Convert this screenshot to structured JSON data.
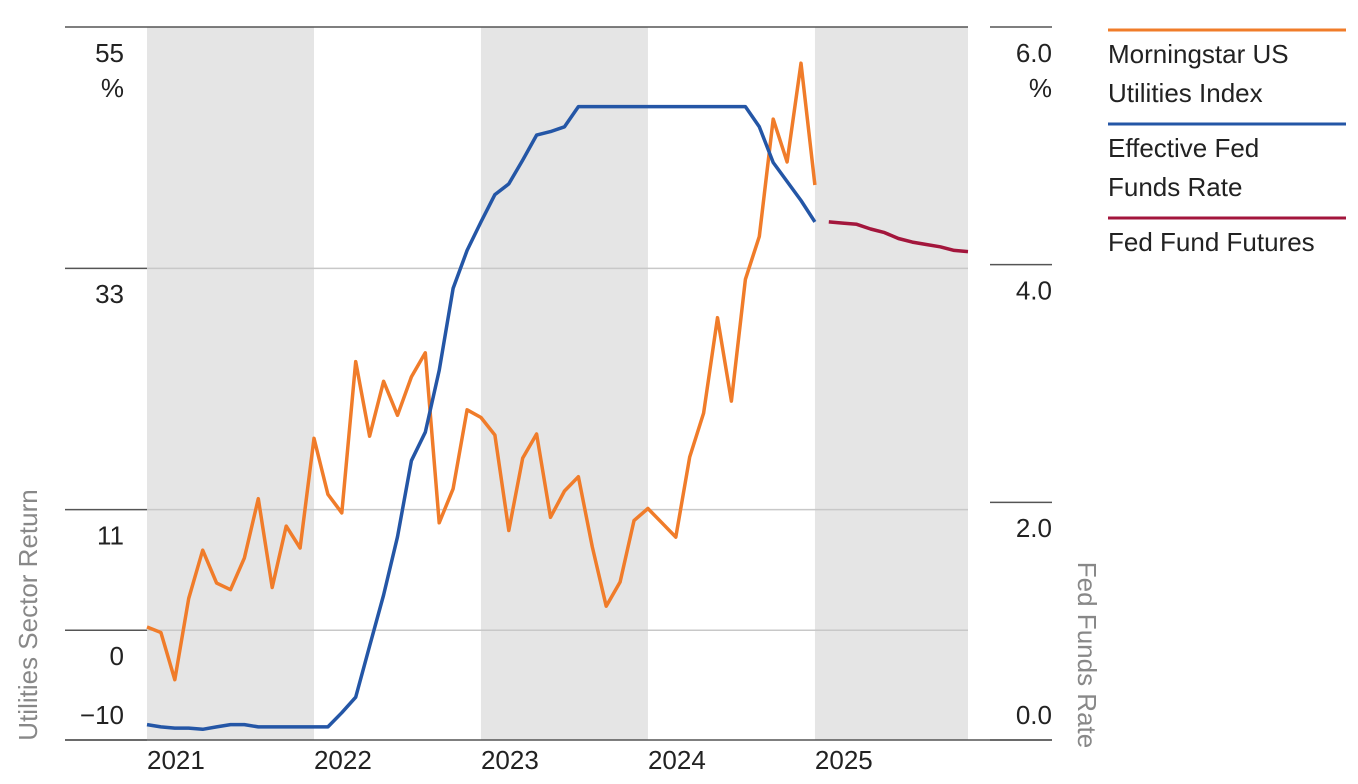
{
  "chart_data": {
    "type": "line",
    "y_label": "Utilities Sector Return",
    "y2_label": "Fed Funds Rate",
    "y_unit": "%",
    "y2_unit": "%",
    "categories": [
      "2021",
      null,
      null,
      null,
      null,
      null,
      null,
      null,
      null,
      null,
      null,
      null,
      "2022",
      null,
      null,
      null,
      null,
      null,
      null,
      null,
      null,
      null,
      null,
      null,
      "2023",
      null,
      null,
      null,
      null,
      null,
      null,
      null,
      null,
      null,
      null,
      null,
      "2024",
      null,
      null,
      null,
      null,
      null,
      null,
      null,
      null,
      null,
      null,
      null,
      "2025",
      null,
      null,
      null,
      null,
      null,
      null,
      null,
      null,
      null,
      null,
      null
    ],
    "ylim": [
      -10,
      55
    ],
    "yticks": [
      {
        "value": -10,
        "label": "−10"
      },
      0,
      11,
      33,
      55
    ],
    "y2lim": [
      0,
      6
    ],
    "y2ticks": [
      {
        "value": 0,
        "label": "0.0"
      },
      {
        "value": 2,
        "label": "2.0"
      },
      {
        "value": 4,
        "label": "4.0"
      },
      {
        "value": 6,
        "label": "6.0"
      }
    ],
    "grid": true,
    "legend": "right",
    "series": [
      {
        "name": "Morningstar US Utilities Index",
        "color": "#f07c2a",
        "values": [
          0.3,
          -0.2,
          -4.5,
          2.9,
          7.3,
          4.3,
          3.7,
          6.6,
          12,
          3.9,
          9.5,
          7.5,
          17.5,
          12.4,
          10.7,
          24.5,
          17.7,
          22.7,
          19.6,
          23.1,
          25.3,
          9.8,
          12.9,
          20.1,
          19.4,
          17.8,
          9.1,
          15.7,
          17.9,
          10.3,
          12.7,
          14,
          7.6,
          2.2,
          4.4,
          10,
          11.1,
          9.8,
          8.5,
          15.8,
          19.8,
          28.5,
          20.9,
          32,
          35.9,
          46.6,
          42.7,
          51.7,
          40.6,
          null,
          null,
          null,
          null,
          null,
          null,
          null,
          null,
          null,
          null,
          null
        ]
      },
      {
        "name": "Effective Fed Funds Rate",
        "color": "#2456a6",
        "axis": "y2",
        "values": [
          0.13,
          0.11,
          0.1,
          0.1,
          0.09,
          0.11,
          0.13,
          0.13,
          0.11,
          0.11,
          0.11,
          0.11,
          0.11,
          0.11,
          0.23,
          0.36,
          0.79,
          1.22,
          1.71,
          2.35,
          2.59,
          3.11,
          3.8,
          4.12,
          4.36,
          4.59,
          4.68,
          4.88,
          5.09,
          5.12,
          5.16,
          5.33,
          5.33,
          5.33,
          5.33,
          5.33,
          5.33,
          5.33,
          5.33,
          5.33,
          5.33,
          5.33,
          5.33,
          5.33,
          5.16,
          4.86,
          4.7,
          4.54,
          4.36,
          null,
          null,
          null,
          null,
          null,
          null,
          null,
          null,
          null,
          null,
          null
        ]
      },
      {
        "name": "Fed Fund Futures",
        "color": "#a3163c",
        "axis": "y2",
        "values": [
          null,
          null,
          null,
          null,
          null,
          null,
          null,
          null,
          null,
          null,
          null,
          null,
          null,
          null,
          null,
          null,
          null,
          null,
          null,
          null,
          null,
          null,
          null,
          null,
          null,
          null,
          null,
          null,
          null,
          null,
          null,
          null,
          null,
          null,
          null,
          null,
          null,
          null,
          null,
          null,
          null,
          null,
          null,
          null,
          null,
          null,
          null,
          null,
          null,
          4.36,
          4.35,
          4.34,
          4.3,
          4.27,
          4.22,
          4.19,
          4.17,
          4.15,
          4.12,
          4.11
        ]
      }
    ]
  }
}
